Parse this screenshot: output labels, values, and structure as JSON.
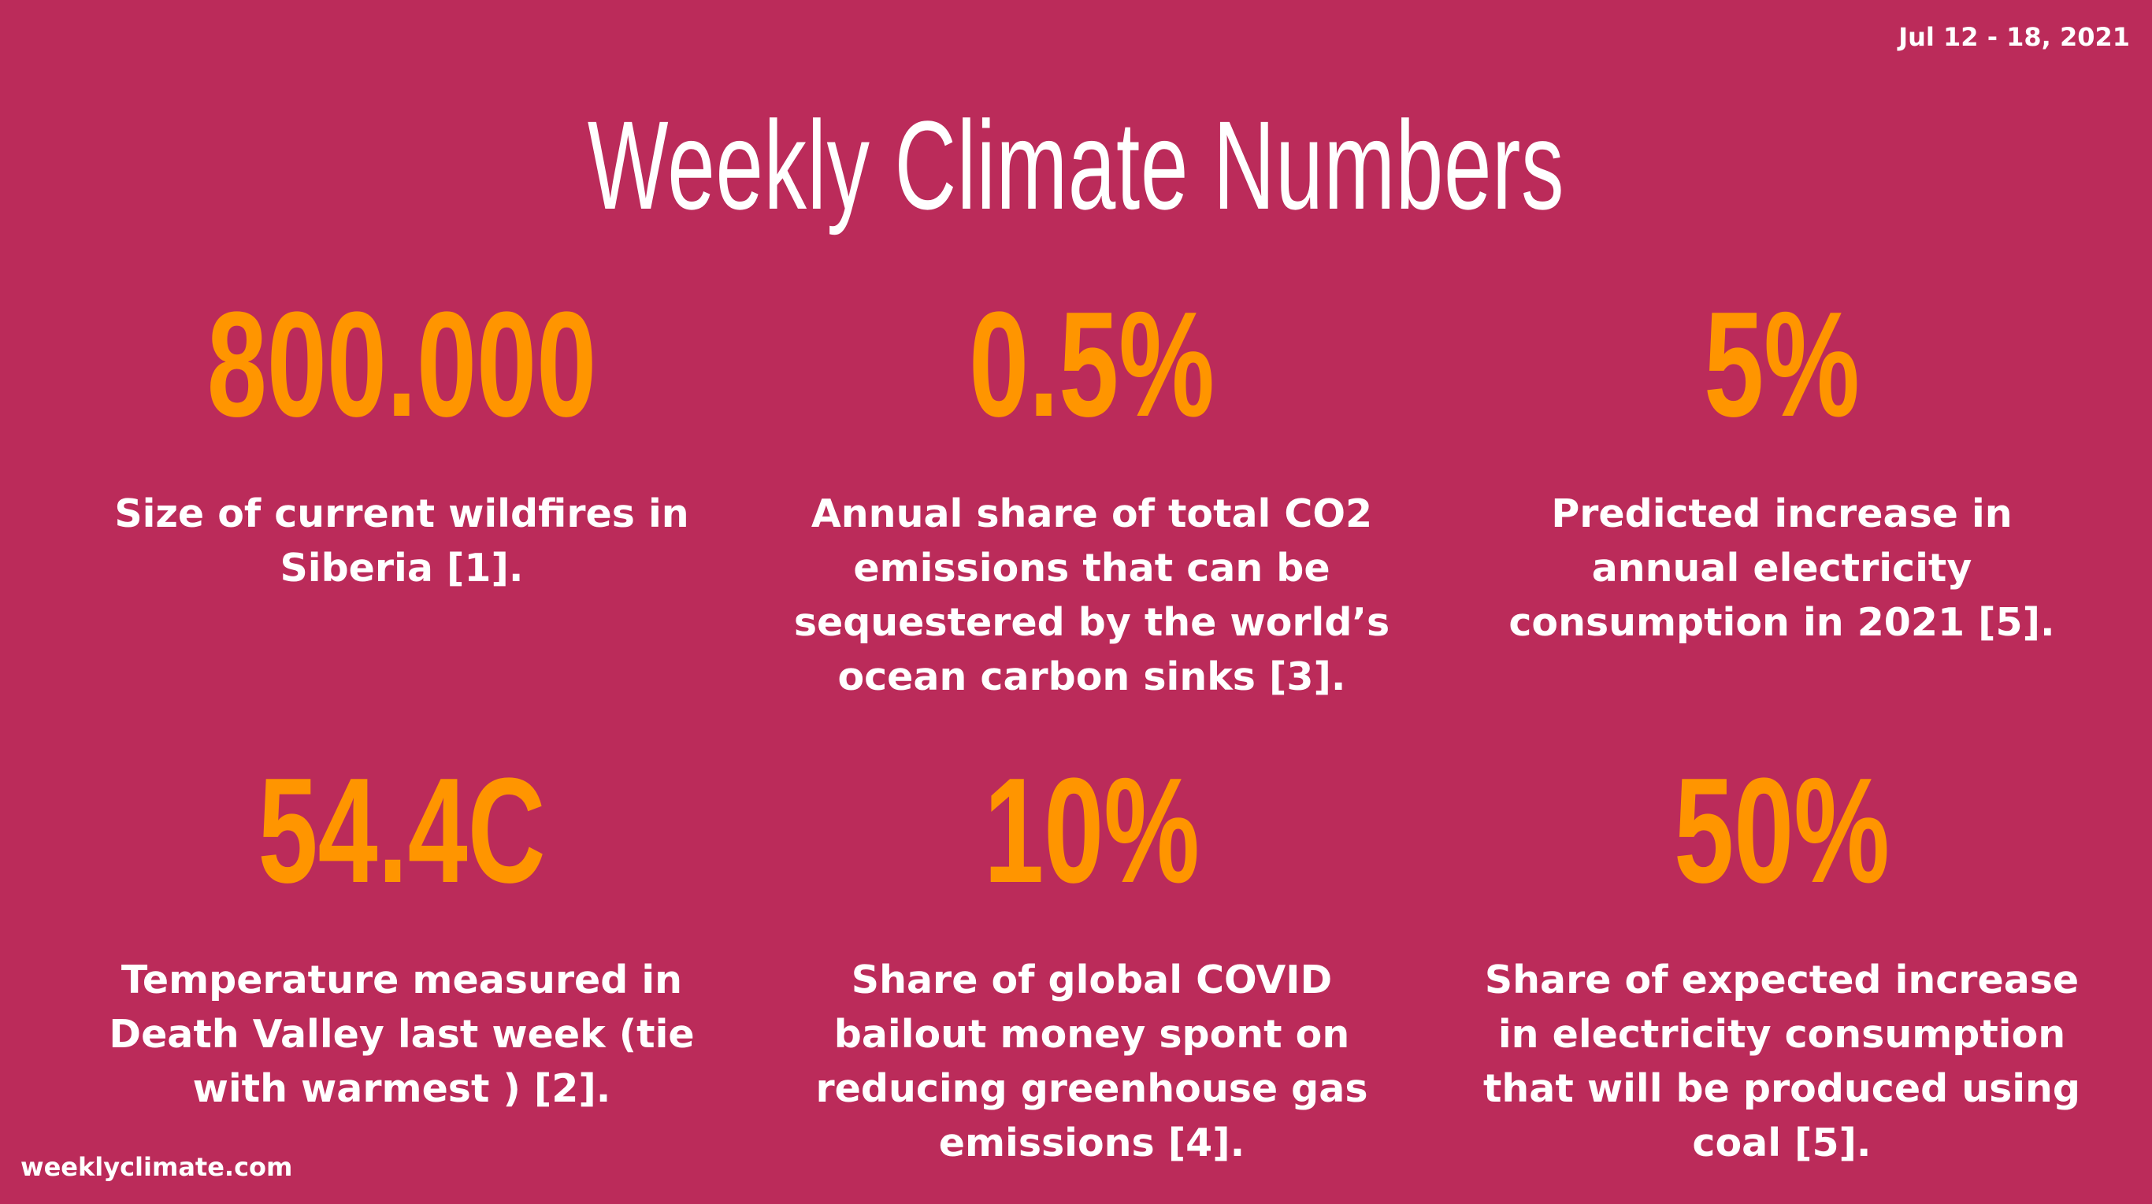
{
  "header": {
    "date_range": "Jul 12 - 18, 2021",
    "title": "Weekly Climate Numbers"
  },
  "stats": [
    {
      "value": "800.000",
      "description": "Size of current wildfires in Siberia [1]."
    },
    {
      "value": "0.5%",
      "description": "Annual share of total CO2 emissions that can be sequestered by the world’s ocean carbon sinks [3]."
    },
    {
      "value": "5%",
      "description": "Predicted increase in annual electricity consumption in 2021 [5]."
    },
    {
      "value": "54.4C",
      "description": "Temperature measured in Death Valley last week (tie with warmest ) [2]."
    },
    {
      "value": "10%",
      "description": "Share of global COVID bailout money spont on reducing greenhouse gas emissions [4]."
    },
    {
      "value": "50%",
      "description": "Share of expected increase in electricity consumption that will be produced using coal [5]."
    }
  ],
  "footer": {
    "site": "weeklyclimate.com"
  },
  "colors": {
    "background": "#bb2b5a",
    "accent": "#ff9500",
    "text": "#ffffff"
  }
}
